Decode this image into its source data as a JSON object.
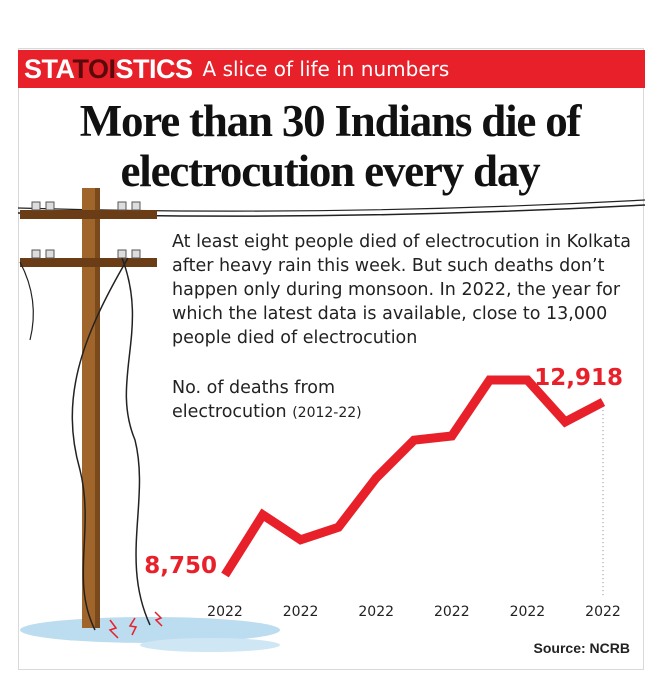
{
  "header": {
    "brand": [
      "STA",
      "TOI",
      "STICS"
    ],
    "tagline": "A slice of life in numbers"
  },
  "chart_data": {
    "type": "line",
    "title": "More than 30 Indians die of electrocution every day",
    "description": "At least eight people died of electrocution in Kolkata after heavy rain this week. But such deaths don’t happen only during monsoon. In 2022, the year for which the latest data is available, close to 13,000 people died of electrocution",
    "label": "No. of deaths from electrocution",
    "label_period": "(2012-22)",
    "categories": [
      "2022",
      null,
      "2022",
      null,
      "2022",
      null,
      "2022",
      null,
      "2022",
      null,
      "2022"
    ],
    "values": [
      8750,
      10200,
      9600,
      9900,
      11090,
      12000,
      12100,
      13450,
      13450,
      12440,
      12918
    ],
    "value_labels": [
      "8,750",
      null,
      null,
      null,
      null,
      null,
      null,
      null,
      null,
      null,
      "12,918"
    ],
    "color": "#e8202a",
    "source": "Source: NCRB"
  }
}
